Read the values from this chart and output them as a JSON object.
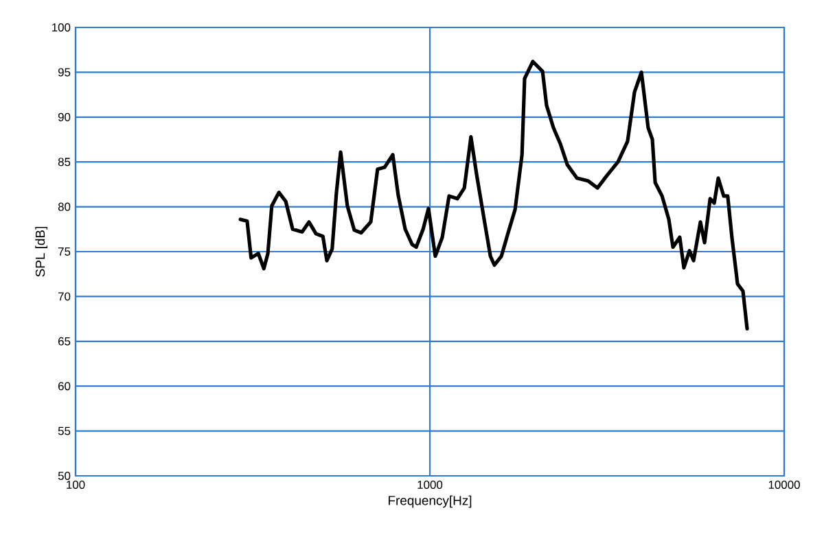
{
  "chart_data": {
    "type": "line",
    "xlabel": "Frequency[Hz]",
    "ylabel": "SPL [dB]",
    "log": "x",
    "grid": true,
    "marker": "none",
    "line_style": "solid",
    "xlim": [
      100,
      10000
    ],
    "xticks": [
      100,
      1000,
      10000
    ],
    "ylim": [
      50,
      100
    ],
    "yticks": [
      50,
      55,
      60,
      65,
      70,
      75,
      80,
      85,
      90,
      95,
      100
    ],
    "series": [
      {
        "color": "#000000",
        "x": [
          292,
          305,
          313,
          328,
          340,
          349,
          358,
          375,
          392,
          410,
          436,
          456,
          477,
          499,
          512,
          530,
          545,
          560,
          585,
          612,
          640,
          681,
          712,
          745,
          786,
          814,
          852,
          891,
          915,
          957,
          991,
          1036,
          1084,
          1133,
          1196,
          1251,
          1306,
          1355,
          1416,
          1482,
          1521,
          1592,
          1663,
          1740,
          1820,
          1851,
          1953,
          2080,
          2135,
          2233,
          2336,
          2442,
          2600,
          2793,
          2972,
          3162,
          3396,
          3614,
          3782,
          3955,
          4132,
          4246,
          4324,
          4522,
          4725,
          4853,
          5073,
          5212,
          5403,
          5550,
          5803,
          5961,
          6180,
          6346,
          6516,
          6750,
          6929,
          7120,
          7386,
          7650,
          7860
        ],
        "values": [
          78.6,
          78.4,
          74.3,
          74.8,
          73.1,
          74.8,
          80.1,
          81.6,
          80.6,
          77.5,
          77.2,
          78.3,
          77.0,
          76.7,
          74.0,
          75.3,
          81.6,
          86.1,
          80.1,
          77.4,
          77.1,
          78.3,
          84.2,
          84.4,
          85.8,
          81.3,
          77.5,
          75.8,
          75.5,
          77.5,
          79.8,
          74.5,
          76.6,
          81.2,
          80.9,
          82.1,
          87.8,
          83.6,
          79.1,
          74.5,
          73.5,
          74.5,
          77.1,
          79.7,
          85.8,
          94.3,
          96.2,
          95.1,
          91.3,
          88.8,
          87.0,
          84.7,
          83.2,
          82.9,
          82.1,
          83.5,
          85.0,
          87.3,
          92.8,
          95.0,
          88.8,
          87.5,
          82.7,
          81.2,
          78.6,
          75.5,
          76.6,
          73.2,
          75.1,
          74.0,
          78.3,
          76.0,
          80.9,
          80.4,
          83.2,
          81.2,
          81.2,
          76.6,
          71.4,
          70.6,
          66.4
        ]
      }
    ]
  }
}
